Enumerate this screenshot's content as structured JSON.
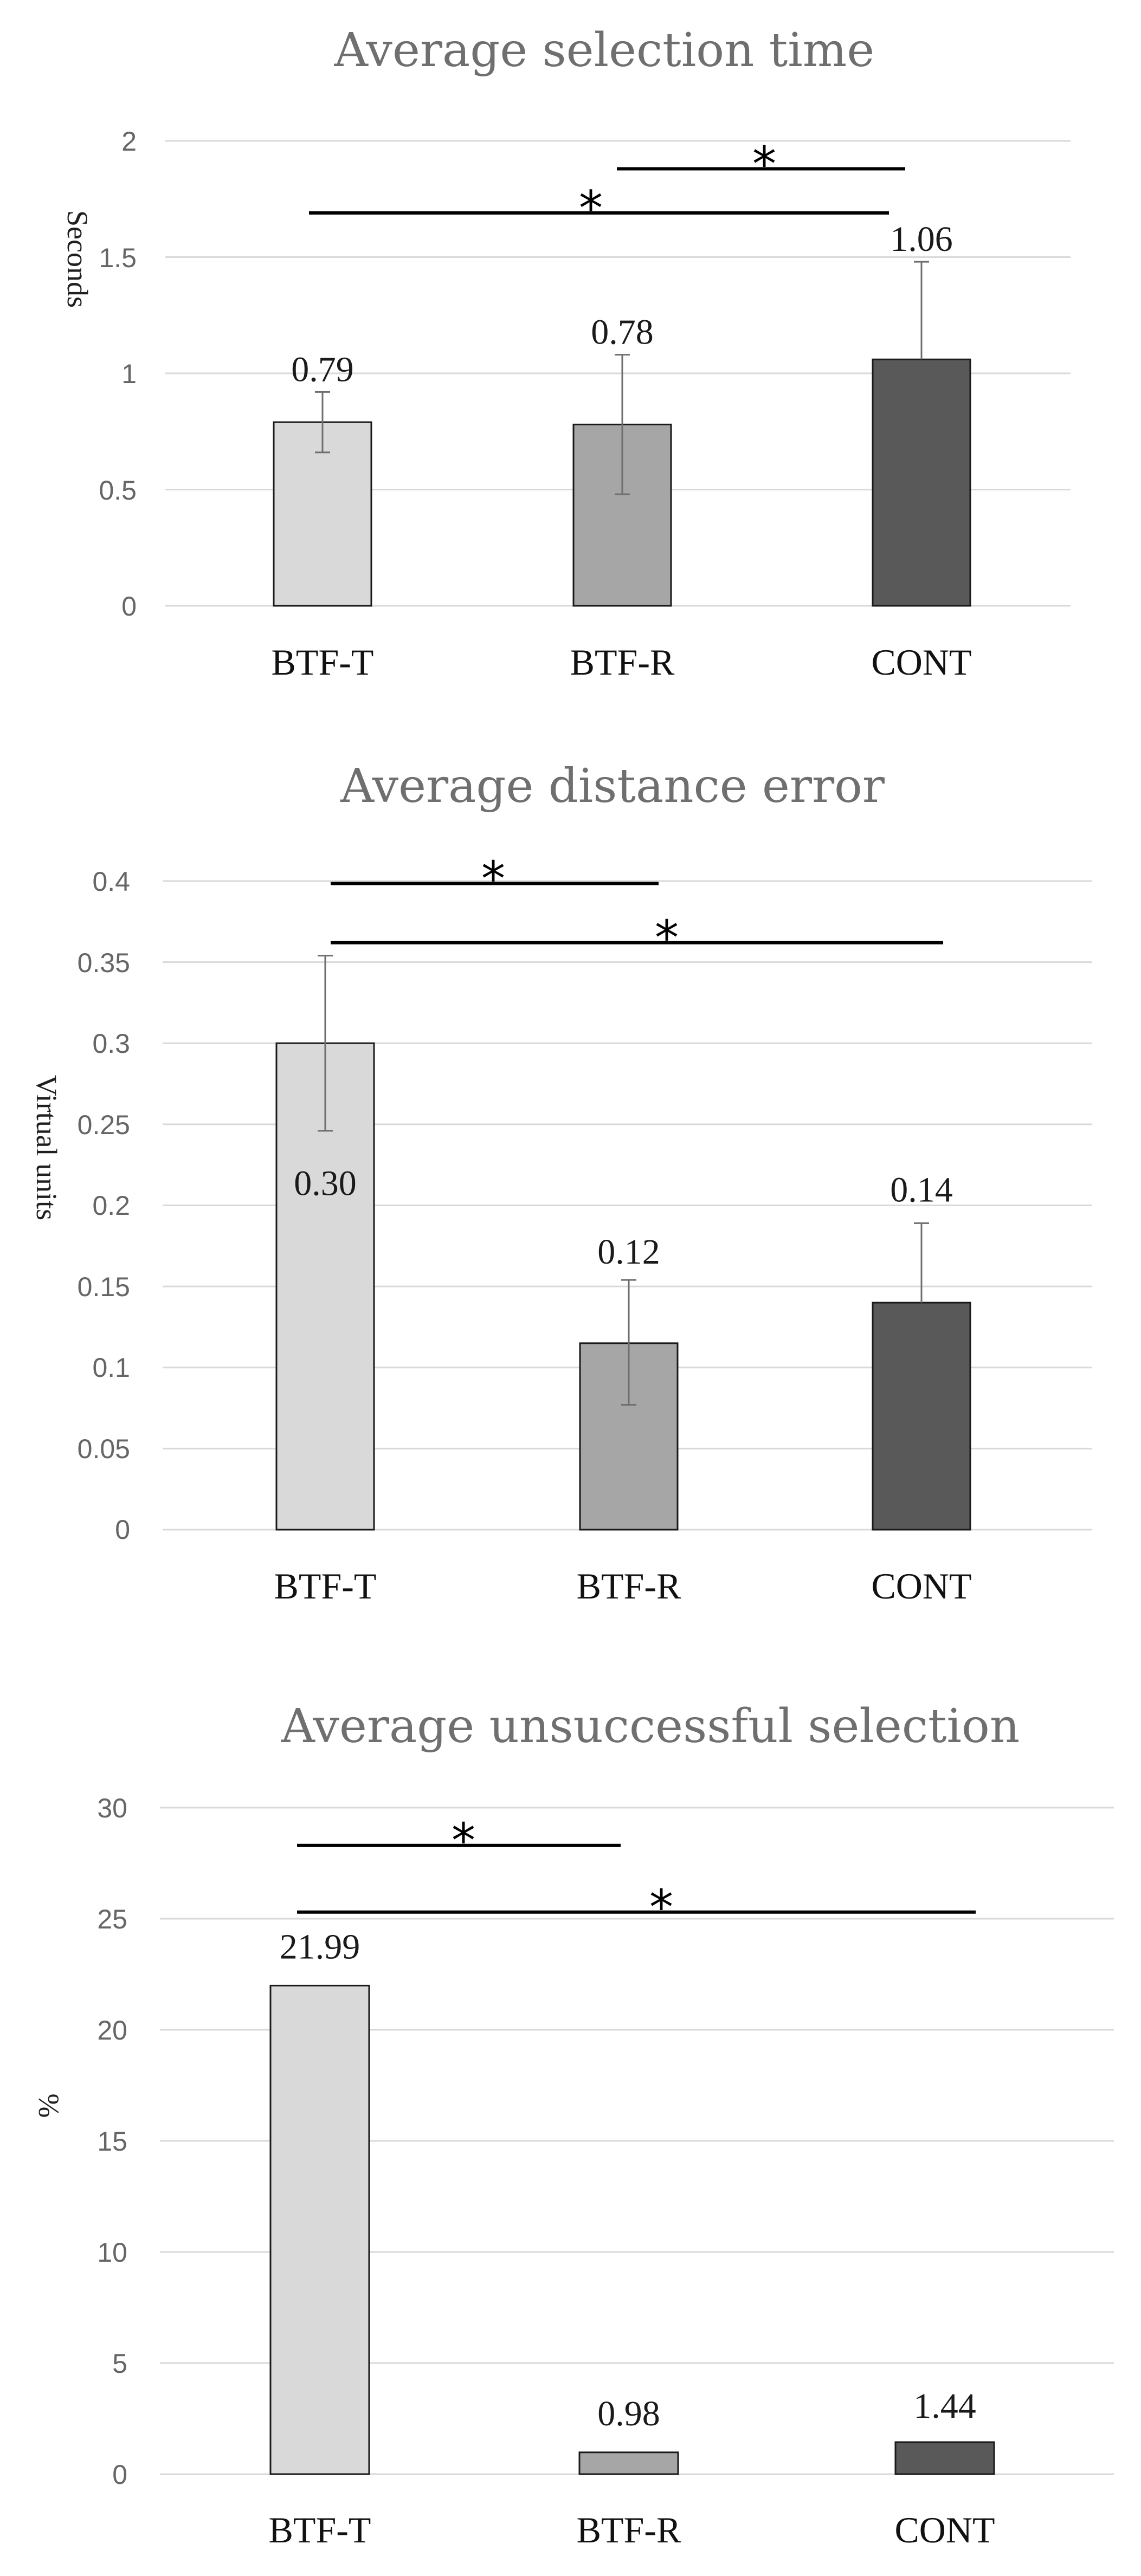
{
  "chart_data": [
    {
      "type": "bar",
      "title": "Average selection time",
      "ylabel": "Seconds",
      "xlabel": "",
      "ylim": [
        0,
        2
      ],
      "yticks": [
        "0",
        "0.5",
        "1",
        "1.5",
        "2"
      ],
      "ytick_values": [
        0,
        0.5,
        1,
        1.5,
        2
      ],
      "categories": [
        "BTF-T",
        "BTF-R",
        "CONT"
      ],
      "values": [
        0.79,
        0.78,
        1.06
      ],
      "error_upper": [
        0.92,
        1.08,
        1.48
      ],
      "error_lower": [
        0.66,
        0.48,
        1.06
      ],
      "data_labels": [
        "0.79",
        "0.78",
        "1.06"
      ],
      "bar_colors": [
        "#d9d9d9",
        "#a6a6a6",
        "#595959"
      ],
      "grid": true,
      "significance": [
        {
          "from": 1,
          "to": 2,
          "y": 1.88,
          "label": "*"
        },
        {
          "from": 0,
          "to": 2,
          "y": 1.69,
          "label": "*"
        }
      ]
    },
    {
      "type": "bar",
      "title": "Average distance error",
      "ylabel": "Virtual units",
      "xlabel": "",
      "ylim": [
        0,
        0.4
      ],
      "yticks": [
        "0",
        "0.05",
        "0.1",
        "0.15",
        "0.2",
        "0.25",
        "0.3",
        "0.35",
        "0.4"
      ],
      "ytick_values": [
        0,
        0.05,
        0.1,
        0.15,
        0.2,
        0.25,
        0.3,
        0.35,
        0.4
      ],
      "categories": [
        "BTF-T",
        "BTF-R",
        "CONT"
      ],
      "values": [
        0.3,
        0.115,
        0.14
      ],
      "error_upper": [
        0.354,
        0.154,
        0.189
      ],
      "error_lower": [
        0.246,
        0.077,
        0.14
      ],
      "data_labels": [
        "0.30",
        "0.12",
        "0.14"
      ],
      "bar_colors": [
        "#d9d9d9",
        "#a6a6a6",
        "#595959"
      ],
      "grid": true,
      "significance": [
        {
          "from": 0,
          "to": 1,
          "y": 0.3985,
          "label": "*"
        },
        {
          "from": 0,
          "to": 2,
          "y": 0.362,
          "label": "*"
        }
      ]
    },
    {
      "type": "bar",
      "title": "Average unsuccessful selection",
      "ylabel": "%",
      "xlabel": "",
      "ylim": [
        0,
        30
      ],
      "yticks": [
        "0",
        "5",
        "10",
        "15",
        "20",
        "25",
        "30"
      ],
      "ytick_values": [
        0,
        5,
        10,
        15,
        20,
        25,
        30
      ],
      "categories": [
        "BTF-T",
        "BTF-R",
        "CONT"
      ],
      "values": [
        21.99,
        0.98,
        1.44
      ],
      "data_labels": [
        "21.99",
        "0.98",
        "1.44"
      ],
      "bar_colors": [
        "#d9d9d9",
        "#a6a6a6",
        "#595959"
      ],
      "grid": true,
      "significance": [
        {
          "from": 0,
          "to": 1,
          "y": 28.3,
          "label": "*"
        },
        {
          "from": 0,
          "to": 2,
          "y": 25.3,
          "label": "*"
        }
      ]
    }
  ]
}
